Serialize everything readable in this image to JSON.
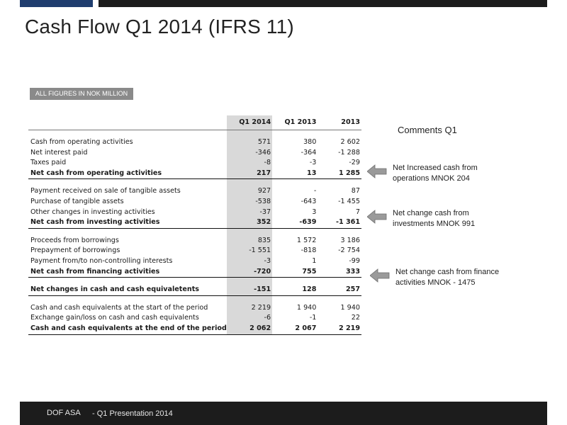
{
  "title": "Cash Flow Q1 2014 (IFRS 11)",
  "figures_note": "ALL FIGURES IN NOK MILLION",
  "table": {
    "headers": [
      "Q1 2014",
      "Q1 2013",
      "2013"
    ],
    "rows": [
      {
        "label": "Cash from operating activities",
        "v": [
          "571",
          "380",
          "2 602"
        ]
      },
      {
        "label": "Net interest paid",
        "v": [
          "-346",
          "-364",
          "-1 288"
        ]
      },
      {
        "label": "Taxes paid",
        "v": [
          "-8",
          "-3",
          "-29"
        ]
      },
      {
        "label": "Net cash from operating activities",
        "v": [
          "217",
          "13",
          "1 285"
        ]
      },
      {
        "label": "Payment received on sale of tangible assets",
        "v": [
          "927",
          "-",
          "87"
        ]
      },
      {
        "label": "Purchase of tangible assets",
        "v": [
          "-538",
          "-643",
          "-1 455"
        ]
      },
      {
        "label": "Other changes in investing activities",
        "v": [
          "-37",
          "3",
          "7"
        ]
      },
      {
        "label": "Net cash from investing activities",
        "v": [
          "352",
          "-639",
          "-1 361"
        ]
      },
      {
        "label": "Proceeds from borrowings",
        "v": [
          "835",
          "1 572",
          "3 186"
        ]
      },
      {
        "label": "Prepayment of borrowings",
        "v": [
          "-1 551",
          "-818",
          "-2 754"
        ]
      },
      {
        "label": "Payment from/to non-controlling interests",
        "v": [
          "-3",
          "1",
          "-99"
        ]
      },
      {
        "label": "Net cash from financing activities",
        "v": [
          "-720",
          "755",
          "333"
        ]
      },
      {
        "label": "Net changes in cash and cash equivaletents",
        "v": [
          "-151",
          "128",
          "257"
        ]
      },
      {
        "label": "Cash and cash equivalents at the start of the period",
        "v": [
          "2 219",
          "1 940",
          "1 940"
        ]
      },
      {
        "label": "Exchange gain/loss on cash and cash equivalents",
        "v": [
          "-6",
          "-1",
          "22"
        ]
      },
      {
        "label": "Cash and cash equivalents at the end of the period",
        "v": [
          "2 062",
          "2 067",
          "2 219"
        ]
      }
    ]
  },
  "comments": {
    "title": "Comments Q1",
    "items": [
      "Net Increased cash from operations MNOK 204",
      "Net change cash from investments MNOK 991",
      "Net change cash from finance activities MNOK - 1475"
    ]
  },
  "footer": {
    "company": "DOF ASA",
    "event": "- Q1 Presentation 2014"
  },
  "colors": {
    "accent_blue": "#1f3d6e",
    "bar_dark": "#1c1c1c",
    "badge_grey": "#8a8a8a",
    "highlight_col": "#d9d9d9"
  }
}
